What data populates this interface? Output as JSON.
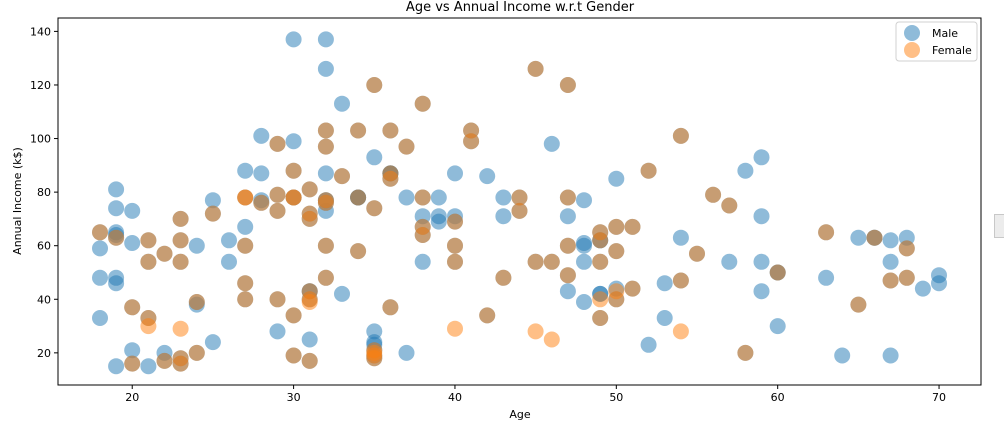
{
  "chart_data": {
    "type": "scatter",
    "title": "Age vs Annual Income w.r.t Gender",
    "xlabel": "Age",
    "ylabel": "Annual Income (k$)",
    "xlim": [
      15.4,
      72.6
    ],
    "ylim": [
      8,
      145
    ],
    "xticks": [
      20,
      30,
      40,
      50,
      60,
      70
    ],
    "yticks": [
      20,
      40,
      60,
      80,
      100,
      120,
      140
    ],
    "grid": false,
    "legend_position": "top-right",
    "series": [
      {
        "name": "Male",
        "color": "#1f77b4",
        "points": [
          [
            19,
            15
          ],
          [
            21,
            15
          ],
          [
            20,
            16
          ],
          [
            23,
            16
          ],
          [
            31,
            17
          ],
          [
            22,
            17
          ],
          [
            35,
            18
          ],
          [
            23,
            18
          ],
          [
            64,
            19
          ],
          [
            30,
            19
          ],
          [
            67,
            19
          ],
          [
            35,
            19
          ],
          [
            58,
            20
          ],
          [
            24,
            20
          ],
          [
            37,
            20
          ],
          [
            22,
            20
          ],
          [
            35,
            21
          ],
          [
            20,
            21
          ],
          [
            52,
            23
          ],
          [
            35,
            23
          ],
          [
            35,
            24
          ],
          [
            25,
            24
          ],
          [
            31,
            25
          ],
          [
            29,
            28
          ],
          [
            35,
            28
          ],
          [
            60,
            30
          ],
          [
            53,
            33
          ],
          [
            18,
            33
          ],
          [
            49,
            33
          ],
          [
            21,
            33
          ],
          [
            42,
            34
          ],
          [
            30,
            34
          ],
          [
            36,
            37
          ],
          [
            20,
            37
          ],
          [
            65,
            38
          ],
          [
            24,
            38
          ],
          [
            48,
            39
          ],
          [
            31,
            40
          ],
          [
            49,
            42
          ],
          [
            24,
            39
          ],
          [
            50,
            40
          ],
          [
            27,
            40
          ],
          [
            29,
            40
          ],
          [
            31,
            43
          ],
          [
            49,
            42
          ],
          [
            33,
            42
          ],
          [
            31,
            43
          ],
          [
            59,
            43
          ],
          [
            50,
            44
          ],
          [
            47,
            43
          ],
          [
            51,
            44
          ],
          [
            69,
            44
          ],
          [
            27,
            46
          ],
          [
            53,
            46
          ],
          [
            70,
            46
          ],
          [
            19,
            46
          ],
          [
            67,
            47
          ],
          [
            54,
            47
          ],
          [
            63,
            48
          ],
          [
            18,
            48
          ],
          [
            43,
            48
          ],
          [
            68,
            48
          ],
          [
            19,
            48
          ],
          [
            32,
            48
          ],
          [
            70,
            49
          ],
          [
            47,
            49
          ],
          [
            60,
            50
          ],
          [
            60,
            50
          ],
          [
            59,
            54
          ],
          [
            26,
            54
          ],
          [
            45,
            54
          ],
          [
            40,
            54
          ],
          [
            23,
            54
          ],
          [
            49,
            54
          ],
          [
            57,
            54
          ],
          [
            38,
            54
          ],
          [
            67,
            54
          ],
          [
            46,
            54
          ],
          [
            21,
            54
          ],
          [
            48,
            54
          ],
          [
            55,
            57
          ],
          [
            22,
            57
          ],
          [
            34,
            58
          ],
          [
            50,
            58
          ],
          [
            68,
            59
          ],
          [
            18,
            59
          ],
          [
            48,
            60
          ],
          [
            40,
            60
          ],
          [
            32,
            60
          ],
          [
            24,
            60
          ],
          [
            47,
            60
          ],
          [
            27,
            60
          ],
          [
            48,
            61
          ],
          [
            20,
            61
          ],
          [
            23,
            62
          ],
          [
            49,
            62
          ],
          [
            67,
            62
          ],
          [
            26,
            62
          ],
          [
            49,
            62
          ],
          [
            21,
            62
          ],
          [
            66,
            63
          ],
          [
            54,
            63
          ],
          [
            68,
            63
          ],
          [
            66,
            63
          ],
          [
            65,
            63
          ],
          [
            19,
            63
          ],
          [
            38,
            64
          ],
          [
            19,
            64
          ],
          [
            18,
            65
          ],
          [
            19,
            65
          ],
          [
            63,
            65
          ],
          [
            49,
            65
          ],
          [
            51,
            67
          ],
          [
            50,
            67
          ],
          [
            27,
            67
          ],
          [
            38,
            67
          ],
          [
            40,
            69
          ],
          [
            39,
            69
          ],
          [
            23,
            70
          ],
          [
            31,
            70
          ],
          [
            43,
            71
          ],
          [
            40,
            71
          ],
          [
            59,
            71
          ],
          [
            38,
            71
          ],
          [
            47,
            71
          ],
          [
            39,
            71
          ],
          [
            25,
            72
          ],
          [
            31,
            72
          ],
          [
            20,
            73
          ],
          [
            29,
            73
          ],
          [
            44,
            73
          ],
          [
            32,
            73
          ],
          [
            19,
            74
          ],
          [
            35,
            74
          ],
          [
            57,
            75
          ],
          [
            32,
            76
          ],
          [
            28,
            76
          ],
          [
            32,
            77
          ],
          [
            25,
            77
          ],
          [
            28,
            77
          ],
          [
            48,
            77
          ],
          [
            32,
            77
          ],
          [
            34,
            78
          ],
          [
            34,
            78
          ],
          [
            43,
            78
          ],
          [
            39,
            78
          ],
          [
            44,
            78
          ],
          [
            38,
            78
          ],
          [
            47,
            78
          ],
          [
            27,
            78
          ],
          [
            37,
            78
          ],
          [
            30,
            78
          ],
          [
            34,
            78
          ],
          [
            30,
            78
          ],
          [
            56,
            79
          ],
          [
            29,
            79
          ],
          [
            19,
            81
          ],
          [
            31,
            81
          ],
          [
            50,
            85
          ],
          [
            36,
            85
          ],
          [
            42,
            86
          ],
          [
            33,
            86
          ],
          [
            36,
            87
          ],
          [
            32,
            87
          ],
          [
            40,
            87
          ],
          [
            28,
            87
          ],
          [
            36,
            87
          ],
          [
            36,
            87
          ],
          [
            52,
            88
          ],
          [
            30,
            88
          ],
          [
            58,
            88
          ],
          [
            27,
            88
          ],
          [
            59,
            93
          ],
          [
            35,
            93
          ],
          [
            37,
            97
          ],
          [
            32,
            97
          ],
          [
            46,
            98
          ],
          [
            29,
            98
          ],
          [
            41,
            99
          ],
          [
            30,
            99
          ],
          [
            54,
            101
          ],
          [
            28,
            101
          ],
          [
            41,
            103
          ],
          [
            36,
            103
          ],
          [
            34,
            103
          ],
          [
            32,
            103
          ],
          [
            33,
            113
          ],
          [
            38,
            113
          ],
          [
            47,
            120
          ],
          [
            35,
            120
          ],
          [
            45,
            126
          ],
          [
            32,
            126
          ],
          [
            32,
            137
          ],
          [
            30,
            137
          ]
        ]
      },
      {
        "name": "Female",
        "color": "#ff7f0e",
        "points": [
          [
            20,
            16
          ],
          [
            23,
            16
          ],
          [
            22,
            17
          ],
          [
            31,
            17
          ],
          [
            35,
            18
          ],
          [
            23,
            18
          ],
          [
            30,
            19
          ],
          [
            35,
            19
          ],
          [
            24,
            20
          ],
          [
            35,
            20
          ],
          [
            58,
            20
          ],
          [
            35,
            21
          ],
          [
            21,
            30
          ],
          [
            23,
            29
          ],
          [
            40,
            29
          ],
          [
            45,
            28
          ],
          [
            54,
            28
          ],
          [
            46,
            25
          ],
          [
            30,
            34
          ],
          [
            42,
            34
          ],
          [
            49,
            33
          ],
          [
            21,
            33
          ],
          [
            36,
            37
          ],
          [
            20,
            37
          ],
          [
            65,
            38
          ],
          [
            24,
            39
          ],
          [
            31,
            40
          ],
          [
            50,
            40
          ],
          [
            27,
            40
          ],
          [
            29,
            40
          ],
          [
            31,
            39
          ],
          [
            49,
            40
          ],
          [
            31,
            43
          ],
          [
            50,
            43
          ],
          [
            51,
            44
          ],
          [
            27,
            46
          ],
          [
            54,
            47
          ],
          [
            67,
            47
          ],
          [
            68,
            48
          ],
          [
            43,
            48
          ],
          [
            32,
            48
          ],
          [
            47,
            49
          ],
          [
            60,
            50
          ],
          [
            45,
            54
          ],
          [
            40,
            54
          ],
          [
            23,
            54
          ],
          [
            49,
            54
          ],
          [
            46,
            54
          ],
          [
            21,
            54
          ],
          [
            55,
            57
          ],
          [
            22,
            57
          ],
          [
            34,
            58
          ],
          [
            50,
            58
          ],
          [
            68,
            59
          ],
          [
            40,
            60
          ],
          [
            32,
            60
          ],
          [
            47,
            60
          ],
          [
            27,
            60
          ],
          [
            23,
            62
          ],
          [
            49,
            62
          ],
          [
            21,
            62
          ],
          [
            66,
            63
          ],
          [
            18,
            65
          ],
          [
            19,
            63
          ],
          [
            63,
            65
          ],
          [
            49,
            65
          ],
          [
            38,
            64
          ],
          [
            50,
            67
          ],
          [
            51,
            67
          ],
          [
            38,
            67
          ],
          [
            40,
            69
          ],
          [
            23,
            70
          ],
          [
            31,
            70
          ],
          [
            31,
            72
          ],
          [
            25,
            72
          ],
          [
            29,
            73
          ],
          [
            44,
            73
          ],
          [
            35,
            74
          ],
          [
            57,
            75
          ],
          [
            32,
            76
          ],
          [
            28,
            76
          ],
          [
            32,
            77
          ],
          [
            44,
            78
          ],
          [
            34,
            78
          ],
          [
            47,
            78
          ],
          [
            27,
            78
          ],
          [
            38,
            78
          ],
          [
            30,
            78
          ],
          [
            30,
            78
          ],
          [
            29,
            79
          ],
          [
            56,
            79
          ],
          [
            31,
            81
          ],
          [
            36,
            85
          ],
          [
            33,
            86
          ],
          [
            36,
            87
          ],
          [
            30,
            88
          ],
          [
            27,
            78
          ],
          [
            52,
            88
          ],
          [
            37,
            97
          ],
          [
            32,
            97
          ],
          [
            29,
            98
          ],
          [
            41,
            99
          ],
          [
            54,
            101
          ],
          [
            41,
            103
          ],
          [
            36,
            103
          ],
          [
            34,
            103
          ],
          [
            32,
            103
          ],
          [
            38,
            113
          ],
          [
            35,
            120
          ],
          [
            47,
            120
          ],
          [
            45,
            126
          ]
        ]
      }
    ]
  }
}
